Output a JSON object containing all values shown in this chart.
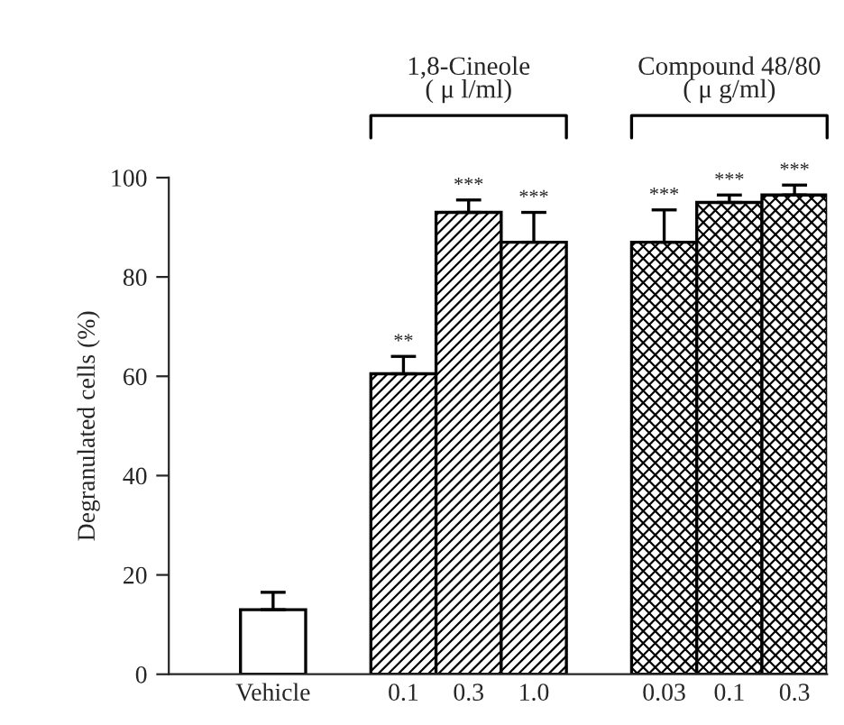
{
  "chart_data": {
    "type": "bar",
    "ylabel": "Degranulated cells (%)",
    "categories": [
      "Vehicle",
      null,
      "0.1",
      "0.3",
      "1.0",
      null,
      "0.03",
      "0.1",
      "0.3"
    ],
    "series": [
      {
        "color": "#ffffff",
        "values": [
          13,
          null,
          null,
          null,
          null,
          null,
          null,
          null,
          null
        ],
        "errors": [
          3.5,
          null,
          null,
          null,
          null,
          null,
          null,
          null,
          null
        ],
        "value_labels": [
          null,
          null,
          null,
          null,
          null,
          null,
          null,
          null,
          null
        ]
      },
      {
        "color": "#000000",
        "values": [
          null,
          null,
          60.5,
          93,
          87,
          null,
          null,
          null,
          null
        ],
        "errors": [
          null,
          null,
          3.5,
          2.5,
          6,
          null,
          null,
          null,
          null
        ],
        "value_labels": [
          null,
          null,
          "**",
          "***",
          "***",
          null,
          null,
          null,
          null
        ]
      },
      {
        "color": "#000000",
        "values": [
          null,
          null,
          null,
          null,
          null,
          null,
          87,
          95,
          96.5
        ],
        "errors": [
          null,
          null,
          null,
          null,
          null,
          null,
          6.5,
          1.5,
          2
        ],
        "value_labels": [
          null,
          null,
          null,
          null,
          null,
          null,
          "***",
          "***",
          "***"
        ]
      }
    ],
    "annotations": [
      "1,8-Cineole\n( μ l/ml)",
      "Compound 48/80\n( μ g/ml)"
    ],
    "ylim": [
      0,
      100
    ],
    "yticks": [
      0,
      20,
      40,
      60,
      80,
      100
    ],
    "grid": false,
    "legend": false
  }
}
